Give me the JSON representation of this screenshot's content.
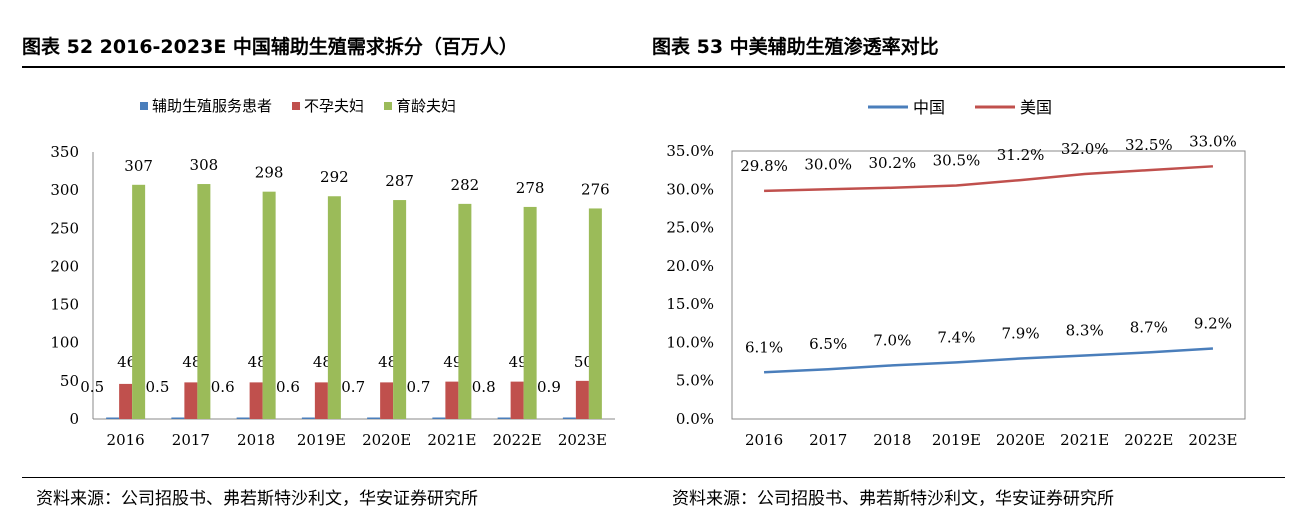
{
  "left": {
    "title": "图表 52 2016-2023E 中国辅助生殖需求拆分（百万人）",
    "source": "资料来源：公司招股书、弗若斯特沙利文，华安证券研究所"
  },
  "right": {
    "title": "图表 53  中美辅助生殖渗透率对比",
    "source": "资料来源：公司招股书、弗若斯特沙利文，华安证券研究所"
  },
  "colors": {
    "blue": "#4a7ebb",
    "red": "#c0504d",
    "green": "#9bbb59"
  },
  "chart_data": [
    {
      "type": "bar",
      "title": "2016-2023E 中国辅助生殖需求拆分（百万人）",
      "categories": [
        "2016",
        "2017",
        "2018",
        "2019E",
        "2020E",
        "2021E",
        "2022E",
        "2023E"
      ],
      "series": [
        {
          "name": "辅助生殖服务患者",
          "values": [
            0.5,
            0.5,
            0.6,
            0.6,
            0.7,
            0.7,
            0.8,
            0.9
          ],
          "labels": [
            "0.5",
            "0.5",
            "0.6",
            "0.6",
            "0.7",
            "0.7",
            "0.8",
            "0.9"
          ]
        },
        {
          "name": "不孕夫妇",
          "values": [
            46,
            48,
            48,
            48,
            48,
            49,
            49,
            50
          ],
          "labels": [
            "46",
            "48",
            "48",
            "48",
            "48",
            "49",
            "49",
            "50"
          ]
        },
        {
          "name": "育龄夫妇",
          "values": [
            307,
            308,
            298,
            292,
            287,
            282,
            278,
            276
          ],
          "labels": [
            "307",
            "308",
            "298",
            "292",
            "287",
            "282",
            "278",
            "276"
          ]
        }
      ],
      "ylim": [
        0,
        350
      ],
      "yticks": [
        "0",
        "50",
        "100",
        "150",
        "200",
        "250",
        "300",
        "350"
      ],
      "legend": "top"
    },
    {
      "type": "line",
      "title": "中美辅助生殖渗透率对比",
      "categories": [
        "2016",
        "2017",
        "2018",
        "2019E",
        "2020E",
        "2021E",
        "2022E",
        "2023E"
      ],
      "series": [
        {
          "name": "中国",
          "values": [
            6.1,
            6.5,
            7.0,
            7.4,
            7.9,
            8.3,
            8.7,
            9.2
          ],
          "labels": [
            "6.1%",
            "6.5%",
            "7.0%",
            "7.4%",
            "7.9%",
            "8.3%",
            "8.7%",
            "9.2%"
          ]
        },
        {
          "name": "美国",
          "values": [
            29.8,
            30.0,
            30.2,
            30.5,
            31.2,
            32.0,
            32.5,
            33.0
          ],
          "labels": [
            "29.8%",
            "30.0%",
            "30.2%",
            "30.5%",
            "31.2%",
            "32.0%",
            "32.5%",
            "33.0%"
          ]
        }
      ],
      "ylim": [
        0,
        35
      ],
      "yticks": [
        "0.0%",
        "5.0%",
        "10.0%",
        "15.0%",
        "20.0%",
        "25.0%",
        "30.0%",
        "35.0%"
      ],
      "legend": "top"
    }
  ]
}
